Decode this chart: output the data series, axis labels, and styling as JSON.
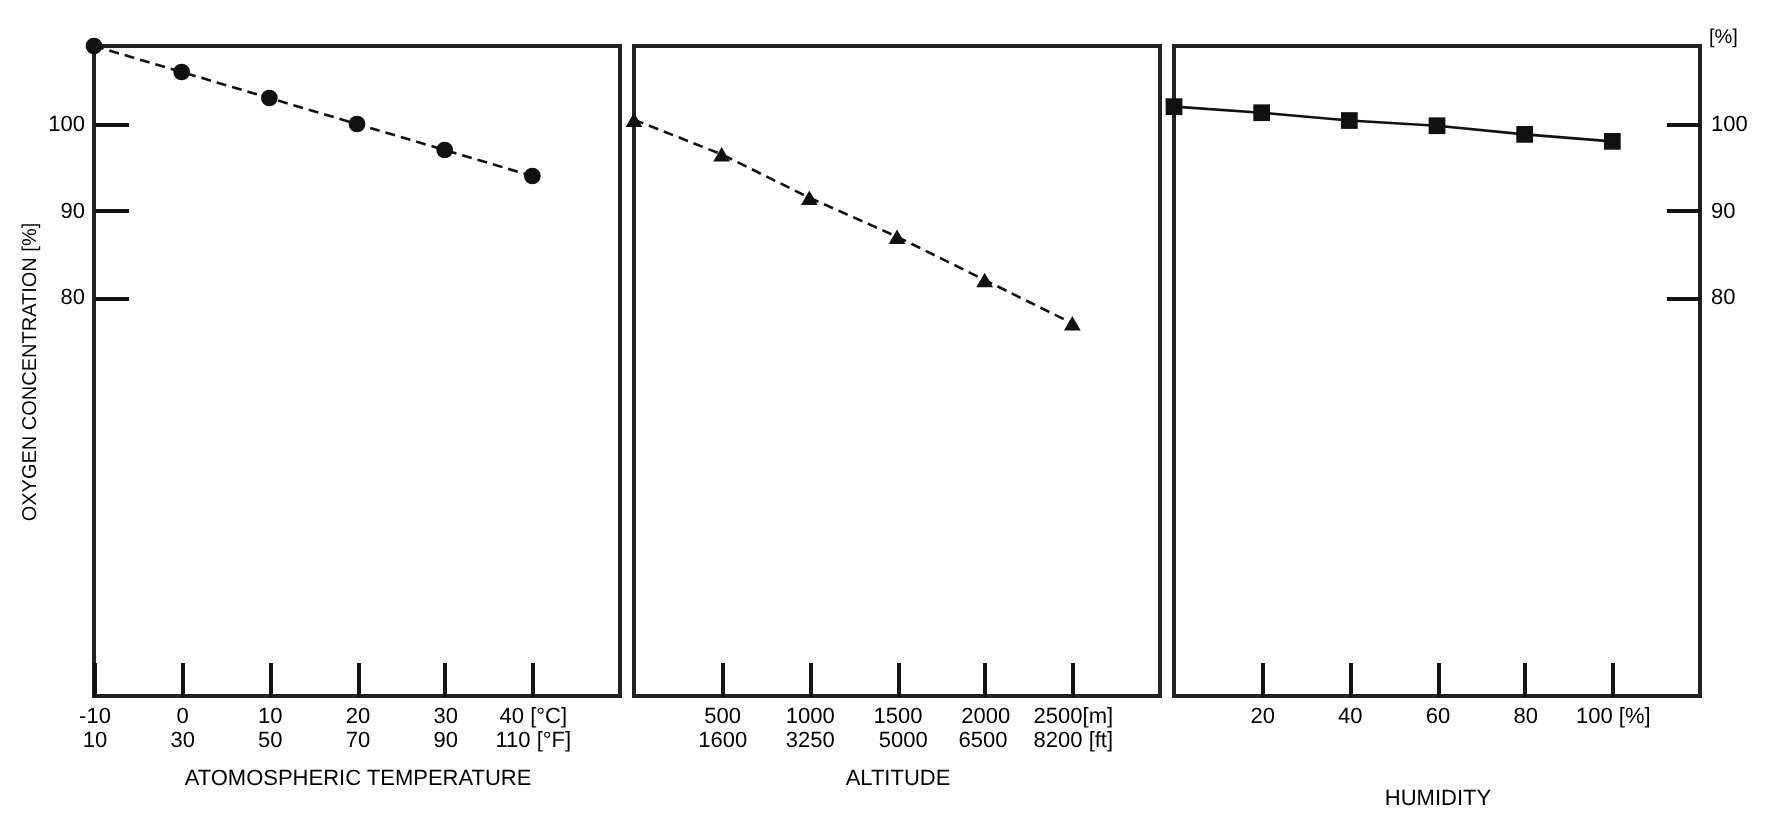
{
  "chart_data": [
    {
      "type": "line",
      "xlabel": "ATOMOSPHERIC TEMPERATURE",
      "ylabel": "OXYGEN CONCENTRATION [%]",
      "x": [
        -10,
        0,
        10,
        20,
        30,
        40
      ],
      "series": [
        {
          "color": "#111111",
          "values": [
            109,
            106,
            103,
            100,
            97,
            94
          ]
        }
      ],
      "xlim": [
        -10,
        50
      ],
      "xticks": [
        -10,
        0,
        10,
        20,
        30,
        {
          "value": 40,
          "label": "40 [°C]"
        }
      ],
      "x2lim": [
        10,
        130
      ],
      "x2ticks": [
        10,
        30,
        50,
        70,
        90,
        {
          "value": 110,
          "label": "110 [°F]"
        }
      ],
      "ylim": [
        34,
        109
      ],
      "yticks": [
        80,
        90,
        100
      ],
      "marker": "circle",
      "line_style": "dashed",
      "grid": false
    },
    {
      "type": "line",
      "xlabel": "ALTITUDE",
      "x": [
        0,
        500,
        1000,
        1500,
        2000,
        2500
      ],
      "series": [
        {
          "color": "#111111",
          "values": [
            100.5,
            96.5,
            91.5,
            87,
            82,
            77
          ]
        }
      ],
      "xlim": [
        0,
        3000
      ],
      "xticks": [
        500,
        1000,
        1500,
        2000,
        {
          "value": 2500,
          "label": "2500[m]"
        }
      ],
      "x2lim": [
        -50,
        9850
      ],
      "x2ticks": [
        1600,
        3250,
        5000,
        6500,
        {
          "value": 8200,
          "label": "8200 [ft]"
        }
      ],
      "ylim": [
        34,
        109
      ],
      "tick_labels": "x",
      "marker": "triangle",
      "line_style": "dashed",
      "grid": false
    },
    {
      "type": "line",
      "xlabel": "HUMIDITY",
      "y2label": "[%]",
      "x": [
        0,
        20,
        40,
        60,
        80,
        100
      ],
      "series": [
        {
          "color": "#111111",
          "values": [
            102,
            101.3,
            100.4,
            99.8,
            98.8,
            98
          ],
          "axis": "y2"
        }
      ],
      "xlim": [
        0,
        120
      ],
      "xticks": [
        20,
        40,
        60,
        80,
        {
          "value": 100,
          "label": "100 [%]"
        }
      ],
      "y2lim": [
        34,
        109
      ],
      "y2ticks": [
        80,
        90,
        100
      ],
      "marker": "square",
      "line_style": "solid",
      "grid": false
    }
  ]
}
